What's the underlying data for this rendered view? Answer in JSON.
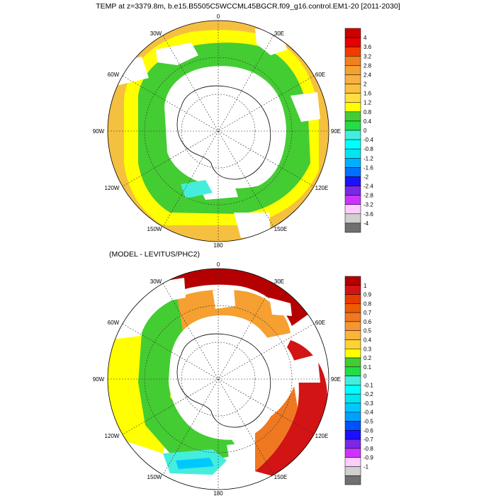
{
  "panels": [
    {
      "title": "TEMP at z=3379.8m, b.e15.B5505C5WCCML45BGCR.f09_g16.control.EM1-20 [2011-2030]",
      "lon_labels": [
        "0",
        "30E",
        "60E",
        "90E",
        "120E",
        "150E",
        "180",
        "150W",
        "120W",
        "90W",
        "60W",
        "30W"
      ],
      "colorbar": {
        "labels": [
          "4",
          "3.6",
          "3.2",
          "2.8",
          "2.4",
          "2",
          "1.6",
          "1.2",
          "0.8",
          "0.4",
          "0",
          "-0.4",
          "-0.8",
          "-1.2",
          "-1.6",
          "-2",
          "-2.4",
          "-2.8",
          "-3.2",
          "-3.6",
          "-4"
        ],
        "colors": [
          "#cc0000",
          "#e60000",
          "#f03c00",
          "#f08020",
          "#f5a030",
          "#fab040",
          "#fcc040",
          "#ffe040",
          "#ffff00",
          "#44cc33",
          "#22dd44",
          "#44eedd",
          "#00ffff",
          "#00e6f0",
          "#00b0ff",
          "#0070ff",
          "#1c10ff",
          "#7a28e6",
          "#cc33ff",
          "#ffccff",
          "#d0d0d0",
          "#707070"
        ]
      }
    },
    {
      "title": "(MODEL - LEVITUS/PHC2)",
      "lon_labels": [
        "0",
        "30E",
        "60E",
        "90E",
        "120E",
        "150E",
        "180",
        "150W",
        "120W",
        "90W",
        "60W",
        "30W"
      ],
      "colorbar": {
        "labels": [
          "1",
          "0.9",
          "0.8",
          "0.7",
          "0.6",
          "0.5",
          "0.4",
          "0.3",
          "0.2",
          "0.1",
          "0",
          "-0.1",
          "-0.2",
          "-0.3",
          "-0.4",
          "-0.5",
          "-0.6",
          "-0.7",
          "-0.8",
          "-0.9",
          "-1"
        ],
        "colors": [
          "#b40000",
          "#d21414",
          "#e63c00",
          "#f05a00",
          "#f07820",
          "#f59632",
          "#fab43c",
          "#ffd232",
          "#ffff00",
          "#44cc33",
          "#22dd44",
          "#44eedd",
          "#00ffff",
          "#00e6f0",
          "#00c8ff",
          "#00a0ff",
          "#0050ff",
          "#1c10ff",
          "#7a28e6",
          "#cc33ff",
          "#ffccff",
          "#d0d0d0",
          "#707070"
        ]
      }
    }
  ]
}
